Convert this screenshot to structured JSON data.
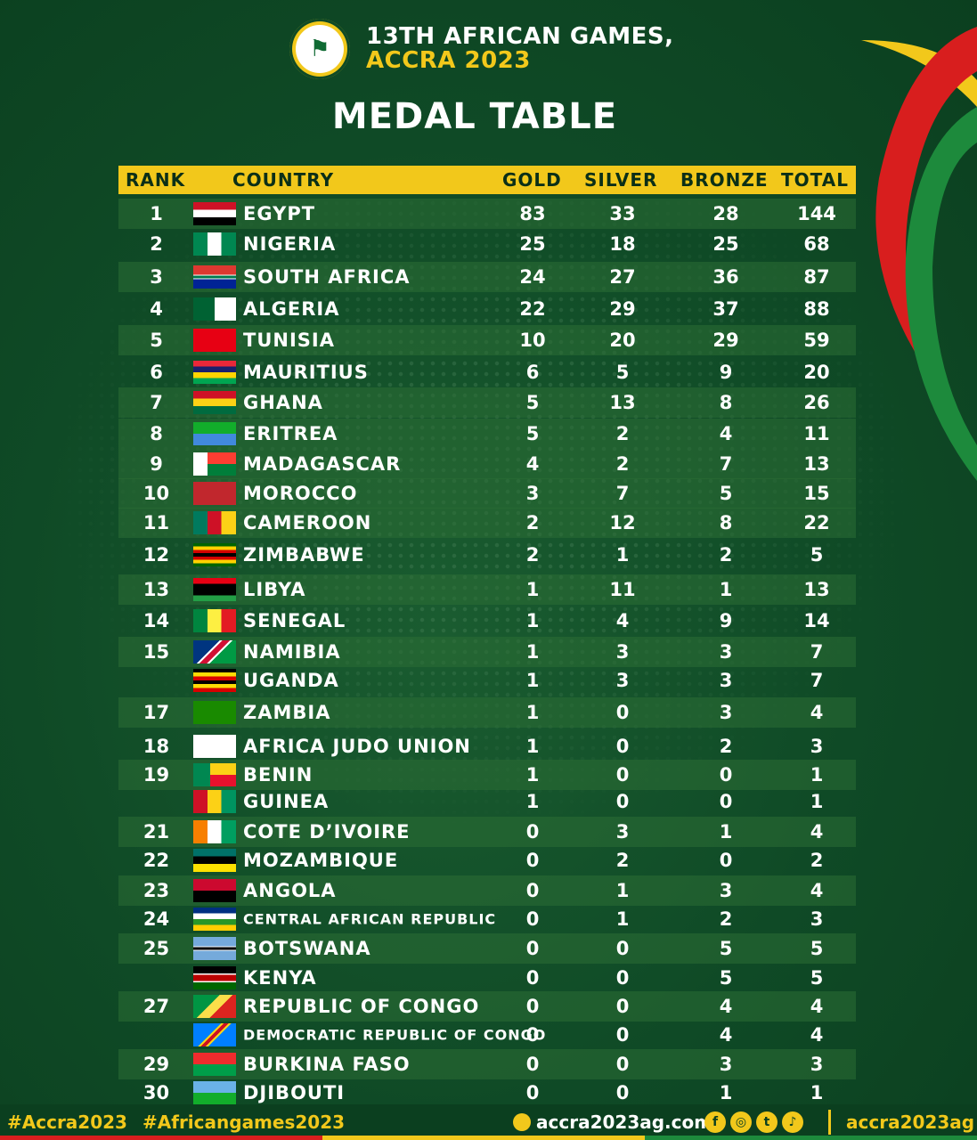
{
  "header": {
    "title_line1": "13TH AFRICAN GAMES,",
    "title_line2": "ACCRA 2023",
    "logo_text": "13TH AFRICAN GAMES ACCRA 2023"
  },
  "heading": "MEDAL TABLE",
  "columns": {
    "rank": "RANK",
    "country": "COUNTRY",
    "gold": "GOLD",
    "silver": "SILVER",
    "bronze": "BRONZE",
    "total": "TOTAL"
  },
  "rows": [
    {
      "rank": "1",
      "country": "EGYPT",
      "gold": "83",
      "silver": "33",
      "bronze": "28",
      "total": "144"
    },
    {
      "rank": "2",
      "country": "NIGERIA",
      "gold": "25",
      "silver": "18",
      "bronze": "25",
      "total": "68"
    },
    {
      "rank": "3",
      "country": "SOUTH AFRICA",
      "gold": "24",
      "silver": "27",
      "bronze": "36",
      "total": "87"
    },
    {
      "rank": "4",
      "country": "ALGERIA",
      "gold": "22",
      "silver": "29",
      "bronze": "37",
      "total": "88"
    },
    {
      "rank": "5",
      "country": "TUNISIA",
      "gold": "10",
      "silver": "20",
      "bronze": "29",
      "total": "59"
    },
    {
      "rank": "6",
      "country": "MAURITIUS",
      "gold": "6",
      "silver": "5",
      "bronze": "9",
      "total": "20"
    },
    {
      "rank": "7",
      "country": "GHANA",
      "gold": "5",
      "silver": "13",
      "bronze": "8",
      "total": "26"
    },
    {
      "rank": "8",
      "country": "ERITREA",
      "gold": "5",
      "silver": "2",
      "bronze": "4",
      "total": "11"
    },
    {
      "rank": "9",
      "country": "MADAGASCAR",
      "gold": "4",
      "silver": "2",
      "bronze": "7",
      "total": "13"
    },
    {
      "rank": "10",
      "country": "MOROCCO",
      "gold": "3",
      "silver": "7",
      "bronze": "5",
      "total": "15"
    },
    {
      "rank": "11",
      "country": "CAMEROON",
      "gold": "2",
      "silver": "12",
      "bronze": "8",
      "total": "22"
    },
    {
      "rank": "12",
      "country": "ZIMBABWE",
      "gold": "2",
      "silver": "1",
      "bronze": "2",
      "total": "5"
    },
    {
      "rank": "13",
      "country": "LIBYA",
      "gold": "1",
      "silver": "11",
      "bronze": "1",
      "total": "13"
    },
    {
      "rank": "14",
      "country": "SENEGAL",
      "gold": "1",
      "silver": "4",
      "bronze": "9",
      "total": "14"
    },
    {
      "rank": "15",
      "country": "NAMIBIA",
      "gold": "1",
      "silver": "3",
      "bronze": "3",
      "total": "7"
    },
    {
      "rank": "",
      "country": "UGANDA",
      "gold": "1",
      "silver": "3",
      "bronze": "3",
      "total": "7"
    },
    {
      "rank": "17",
      "country": "ZAMBIA",
      "gold": "1",
      "silver": "0",
      "bronze": "3",
      "total": "4"
    },
    {
      "rank": "18",
      "country": "AFRICA JUDO UNION",
      "gold": "1",
      "silver": "0",
      "bronze": "2",
      "total": "3"
    },
    {
      "rank": "19",
      "country": "BENIN",
      "gold": "1",
      "silver": "0",
      "bronze": "0",
      "total": "1"
    },
    {
      "rank": "",
      "country": "GUINEA",
      "gold": "1",
      "silver": "0",
      "bronze": "0",
      "total": "1"
    },
    {
      "rank": "21",
      "country": "COTE D’IVOIRE",
      "gold": "0",
      "silver": "3",
      "bronze": "1",
      "total": "4"
    },
    {
      "rank": "22",
      "country": "MOZAMBIQUE",
      "gold": "0",
      "silver": "2",
      "bronze": "0",
      "total": "2"
    },
    {
      "rank": "23",
      "country": "ANGOLA",
      "gold": "0",
      "silver": "1",
      "bronze": "3",
      "total": "4"
    },
    {
      "rank": "24",
      "country": "CENTRAL AFRICAN REPUBLIC",
      "gold": "0",
      "silver": "1",
      "bronze": "2",
      "total": "3"
    },
    {
      "rank": "25",
      "country": "BOTSWANA",
      "gold": "0",
      "silver": "0",
      "bronze": "5",
      "total": "5"
    },
    {
      "rank": "",
      "country": "KENYA",
      "gold": "0",
      "silver": "0",
      "bronze": "5",
      "total": "5"
    },
    {
      "rank": "27",
      "country": "REPUBLIC OF CONGO",
      "gold": "0",
      "silver": "0",
      "bronze": "4",
      "total": "4"
    },
    {
      "rank": "",
      "country": "DEMOCRATIC REPUBLIC OF CONGO",
      "gold": "0",
      "silver": "0",
      "bronze": "4",
      "total": "4"
    },
    {
      "rank": "29",
      "country": "BURKINA FASO",
      "gold": "0",
      "silver": "0",
      "bronze": "3",
      "total": "3"
    },
    {
      "rank": "30",
      "country": "DJIBOUTI",
      "gold": "0",
      "silver": "0",
      "bronze": "1",
      "total": "1"
    }
  ],
  "footer": {
    "hashtag1": "#Accra2023",
    "hashtag2": "#Africangames2023",
    "website": "accra2023ag.com",
    "handle": "accra2023ag"
  },
  "colors": {
    "background": "#0f4a26",
    "accent": "#f2c81b",
    "red": "#d81e1e",
    "green": "#1d8a3c"
  }
}
